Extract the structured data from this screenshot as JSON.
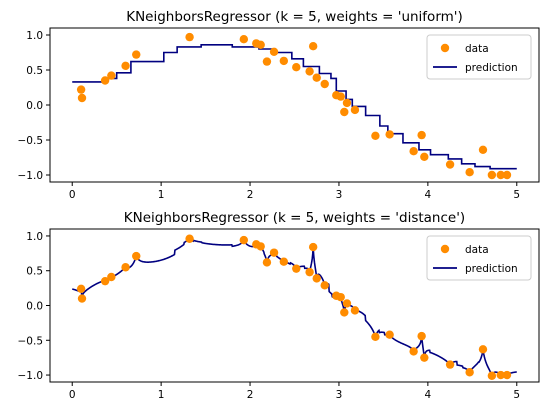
{
  "chart_data": [
    {
      "type": "line",
      "title": "KNeighborsRegressor (k = 5, weights = 'uniform')",
      "xlim": [
        -0.25,
        5.25
      ],
      "ylim": [
        -1.1,
        1.1
      ],
      "x_ticks": [
        0,
        1,
        2,
        3,
        4,
        5
      ],
      "y_ticks": [
        1.0,
        0.5,
        0.0,
        -0.5,
        -1.0
      ],
      "x_tick_labels": [
        "0",
        "1",
        "2",
        "3",
        "4",
        "5"
      ],
      "y_tick_labels": [
        "1.0",
        "0.5",
        "0.0",
        "−0.5",
        "−1.0"
      ],
      "legend": {
        "position": "upper right",
        "entries": [
          "data",
          "prediction"
        ]
      },
      "colors": {
        "data": "#ff8c00",
        "prediction": "#000080"
      },
      "data_points": [
        [
          0.1,
          0.22
        ],
        [
          0.11,
          0.1
        ],
        [
          0.37,
          0.35
        ],
        [
          0.44,
          0.42
        ],
        [
          0.6,
          0.56
        ],
        [
          0.72,
          0.72
        ],
        [
          1.32,
          0.97
        ],
        [
          1.93,
          0.94
        ],
        [
          2.07,
          0.88
        ],
        [
          2.12,
          0.86
        ],
        [
          2.19,
          0.62
        ],
        [
          2.27,
          0.76
        ],
        [
          2.38,
          0.63
        ],
        [
          2.52,
          0.54
        ],
        [
          2.67,
          0.48
        ],
        [
          2.71,
          0.84
        ],
        [
          2.75,
          0.39
        ],
        [
          2.84,
          0.3
        ],
        [
          2.97,
          0.14
        ],
        [
          3.02,
          0.12
        ],
        [
          3.06,
          -0.1
        ],
        [
          3.09,
          0.03
        ],
        [
          3.18,
          -0.07
        ],
        [
          3.41,
          -0.44
        ],
        [
          3.57,
          -0.42
        ],
        [
          3.84,
          -0.66
        ],
        [
          3.93,
          -0.43
        ],
        [
          3.96,
          -0.74
        ],
        [
          4.25,
          -0.85
        ],
        [
          4.47,
          -0.96
        ],
        [
          4.62,
          -0.64
        ],
        [
          4.72,
          -1.0
        ],
        [
          4.82,
          -1.0
        ],
        [
          4.89,
          -1.0
        ]
      ],
      "prediction_steps": [
        [
          0.0,
          0.33
        ],
        [
          0.38,
          0.38
        ],
        [
          0.5,
          0.46
        ],
        [
          0.66,
          0.62
        ],
        [
          1.03,
          0.75
        ],
        [
          1.18,
          0.83
        ],
        [
          1.45,
          0.86
        ],
        [
          1.8,
          0.83
        ],
        [
          2.1,
          0.8
        ],
        [
          2.25,
          0.75
        ],
        [
          2.47,
          0.66
        ],
        [
          2.6,
          0.55
        ],
        [
          2.78,
          0.45
        ],
        [
          2.91,
          0.38
        ],
        [
          2.97,
          0.2
        ],
        [
          3.08,
          0.08
        ],
        [
          3.15,
          -0.02
        ],
        [
          3.3,
          -0.15
        ],
        [
          3.46,
          -0.3
        ],
        [
          3.55,
          -0.41
        ],
        [
          3.72,
          -0.54
        ],
        [
          3.9,
          -0.64
        ],
        [
          4.03,
          -0.71
        ],
        [
          4.23,
          -0.77
        ],
        [
          4.38,
          -0.84
        ],
        [
          4.53,
          -0.88
        ],
        [
          4.7,
          -0.91
        ],
        [
          5.0,
          -0.91
        ]
      ]
    },
    {
      "type": "line",
      "title": "KNeighborsRegressor (k = 5, weights = 'distance')",
      "xlim": [
        -0.25,
        5.25
      ],
      "ylim": [
        -1.1,
        1.1
      ],
      "x_ticks": [
        0,
        1,
        2,
        3,
        4,
        5
      ],
      "y_ticks": [
        1.0,
        0.5,
        0.0,
        -0.5,
        -1.0
      ],
      "x_tick_labels": [
        "0",
        "1",
        "2",
        "3",
        "4",
        "5"
      ],
      "y_tick_labels": [
        "1.0",
        "0.5",
        "0.0",
        "−0.5",
        "−1.0"
      ],
      "legend": {
        "position": "upper right",
        "entries": [
          "data",
          "prediction"
        ]
      },
      "colors": {
        "data": "#ff8c00",
        "prediction": "#000080"
      },
      "data_points": [
        [
          0.1,
          0.24
        ],
        [
          0.11,
          0.1
        ],
        [
          0.37,
          0.35
        ],
        [
          0.44,
          0.41
        ],
        [
          0.6,
          0.55
        ],
        [
          0.72,
          0.71
        ],
        [
          1.32,
          0.96
        ],
        [
          1.93,
          0.94
        ],
        [
          2.07,
          0.88
        ],
        [
          2.12,
          0.85
        ],
        [
          2.19,
          0.62
        ],
        [
          2.27,
          0.76
        ],
        [
          2.38,
          0.63
        ],
        [
          2.52,
          0.53
        ],
        [
          2.67,
          0.48
        ],
        [
          2.71,
          0.84
        ],
        [
          2.75,
          0.39
        ],
        [
          2.84,
          0.29
        ],
        [
          2.97,
          0.14
        ],
        [
          3.02,
          0.12
        ],
        [
          3.06,
          -0.1
        ],
        [
          3.09,
          0.03
        ],
        [
          3.18,
          -0.07
        ],
        [
          3.41,
          -0.45
        ],
        [
          3.57,
          -0.42
        ],
        [
          3.84,
          -0.66
        ],
        [
          3.93,
          -0.44
        ],
        [
          3.96,
          -0.75
        ],
        [
          4.25,
          -0.85
        ],
        [
          4.47,
          -0.96
        ],
        [
          4.62,
          -0.63
        ],
        [
          4.72,
          -1.01
        ],
        [
          4.82,
          -1.0
        ],
        [
          4.89,
          -1.0
        ]
      ],
      "prediction_tail": [
        5.0,
        -0.96
      ]
    }
  ]
}
